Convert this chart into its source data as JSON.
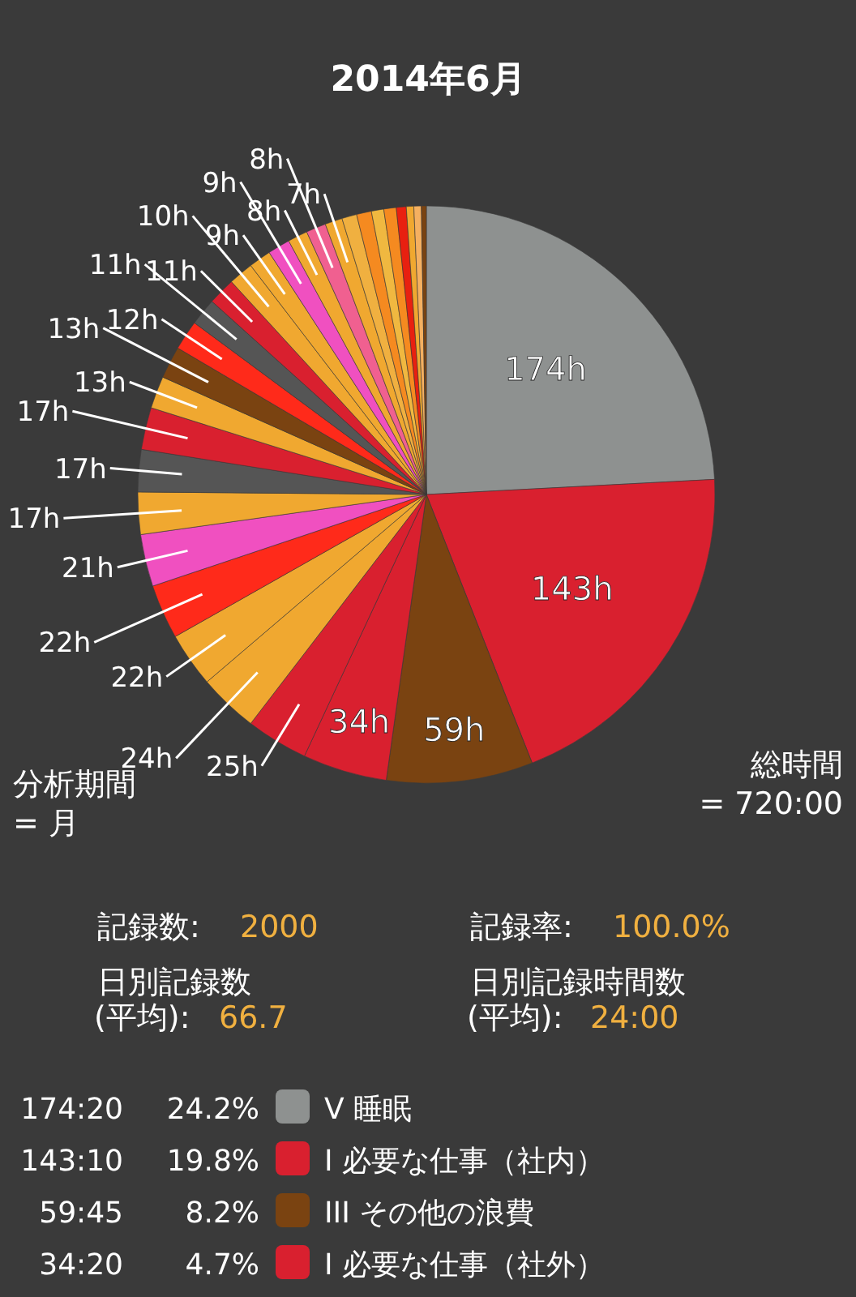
{
  "chart_data": {
    "type": "pie",
    "title": "2014年6月",
    "categories": [
      "V 睡眠",
      "I 必要な仕事（社内）",
      "III その他の浪費",
      "I 必要な仕事（社外）",
      null,
      null,
      null,
      null,
      null,
      null,
      null,
      null,
      null,
      null,
      null,
      null,
      null,
      null,
      null,
      null,
      null,
      null,
      null,
      null,
      null,
      null,
      null,
      null,
      null,
      null,
      null
    ],
    "values": [
      174,
      143,
      59,
      34,
      25,
      24,
      22,
      22,
      21,
      17,
      17,
      17,
      13,
      13,
      12,
      11,
      11,
      10,
      9,
      9,
      8,
      8,
      7,
      6,
      6,
      5,
      5,
      4,
      3,
      3,
      2
    ],
    "colors": [
      "#8e9190",
      "#d9202f",
      "#7a4311",
      "#d9202f",
      "#d9202f",
      "#f0a830",
      "#f0a830",
      "#ff2a1a",
      "#f050c0",
      "#f0a830",
      "#555555",
      "#d9202f",
      "#f0a830",
      "#7a4311",
      "#ff2a1a",
      "#555555",
      "#d9202f",
      "#f0a830",
      "#f0a830",
      "#f050c0",
      "#f0a830",
      "#f06090",
      "#f0a830",
      "#f0b040",
      "#f58a20",
      "#f0b840",
      "#f58a20",
      "#e82010",
      "#f0a830",
      "#f5b060",
      "#7a4311"
    ],
    "value_labels": [
      "174h",
      "143h",
      "59h",
      "34h",
      "25h",
      "24h",
      "22h",
      "22h",
      "21h",
      "17h",
      "17h",
      "17h",
      "13h",
      "13h",
      "12h",
      "11h",
      "11h",
      "10h",
      "9h",
      "9h",
      "8h",
      "8h",
      "7h",
      null,
      null,
      null,
      null,
      null,
      null,
      null,
      null
    ],
    "legend": "bottom",
    "annotations": [
      "分析期間",
      "= 月",
      "総時間",
      "= 720:00",
      "記録数:",
      "2000",
      "記録率:",
      "100.0%",
      "日別記録数",
      "(平均):",
      "66.7",
      "日別記録時間数",
      "(平均):",
      "24:00",
      "174:20",
      "24.2%",
      "143:10",
      "19.8%",
      "59:45",
      "8.2%",
      "34:20",
      "4.7%"
    ]
  }
}
